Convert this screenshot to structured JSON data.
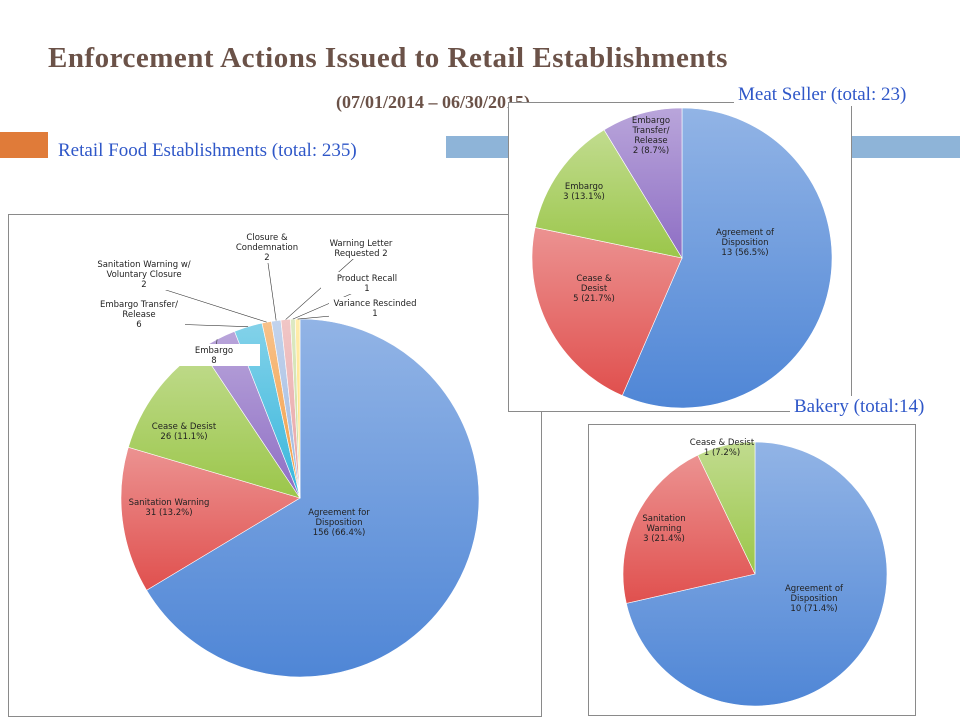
{
  "header": {
    "title": "Enforcement Actions Issued to Retail Establishments",
    "subtitle": "(07/01/2014 – 06/30/2015)"
  },
  "chart_data": [
    {
      "type": "pie",
      "title": "Retail Food Establishments (total: 235)",
      "slices": [
        {
          "label": [
            "Agreement for",
            "Disposition",
            "156 (66.4%)"
          ],
          "value": 156,
          "color": "#4f86d6"
        },
        {
          "label": [
            "Sanitation Warning",
            "31 (13.2%)"
          ],
          "value": 31,
          "color": "#e0504e"
        },
        {
          "label": [
            "Cease & Desist",
            "26 (11.1%)"
          ],
          "value": 26,
          "color": "#9bc64a"
        },
        {
          "label": [
            "Embargo",
            "8"
          ],
          "value": 8,
          "color": "#8e6ec4"
        },
        {
          "label": [
            "Embargo Transfer/",
            "Release",
            "6"
          ],
          "value": 6,
          "color": "#37b6dc"
        },
        {
          "label": [
            "Sanitation Warning w/",
            "Voluntary Closure",
            "2"
          ],
          "value": 2,
          "color": "#f39c42"
        },
        {
          "label": [
            "Closure &",
            "Condemnation",
            "2"
          ],
          "value": 2,
          "color": "#9db8e0"
        },
        {
          "label": [
            "Warning Letter",
            "Requested 2"
          ],
          "value": 2,
          "color": "#e8a3a3"
        },
        {
          "label": [
            "Product Recall",
            "1"
          ],
          "value": 1,
          "color": "#c7dc9e"
        },
        {
          "label": [
            "Variance Rescinded",
            "1"
          ],
          "value": 1,
          "color": "#ffe07a"
        }
      ]
    },
    {
      "type": "pie",
      "title": "Meat Seller (total: 23)",
      "slices": [
        {
          "label": [
            "Agreement of",
            "Disposition",
            "13 (56.5%)"
          ],
          "value": 13,
          "color": "#4f86d6"
        },
        {
          "label": [
            "Cease &",
            "Desist",
            "5 (21.7%)"
          ],
          "value": 5,
          "color": "#e0504e"
        },
        {
          "label": [
            "Embargo",
            "3 (13.1%)"
          ],
          "value": 3,
          "color": "#9bc64a"
        },
        {
          "label": [
            "Embargo",
            "Transfer/",
            "Release",
            "2 (8.7%)"
          ],
          "value": 2,
          "color": "#8e6ec4"
        }
      ]
    },
    {
      "type": "pie",
      "title": "Bakery (total:14)",
      "slices": [
        {
          "label": [
            "Agreement of",
            "Disposition",
            "10 (71.4%)"
          ],
          "value": 10,
          "color": "#4f86d6"
        },
        {
          "label": [
            "Sanitation",
            "Warning",
            "3 (21.4%)"
          ],
          "value": 3,
          "color": "#e0504e"
        },
        {
          "label": [
            "Cease & Desist",
            "1 (7.2%)"
          ],
          "value": 1,
          "color": "#9bc64a"
        }
      ]
    }
  ]
}
